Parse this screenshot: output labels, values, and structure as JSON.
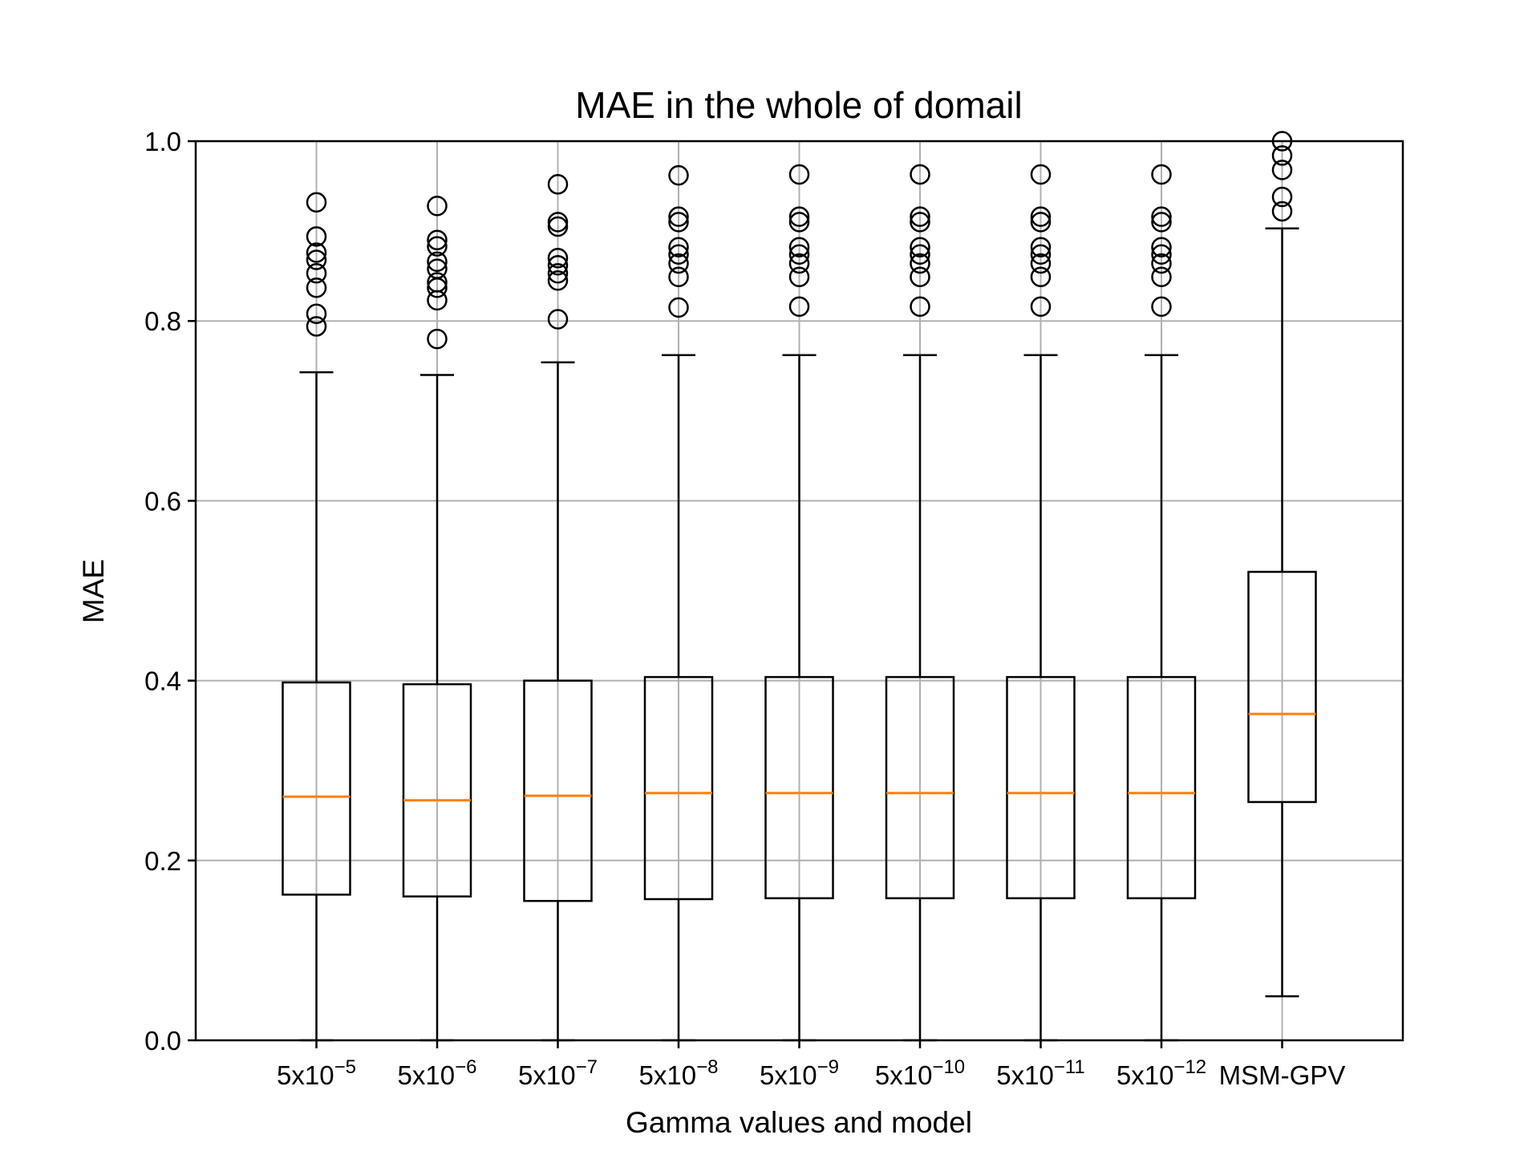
{
  "chart_data": {
    "type": "box",
    "title": "MAE in the whole of domail",
    "xlabel": "Gamma values and model",
    "ylabel": "MAE",
    "ylim": [
      0.0,
      1.0
    ],
    "yticks": [
      "0.0",
      "0.2",
      "0.4",
      "0.6",
      "0.8",
      "1.0"
    ],
    "grid": true,
    "colors": {
      "box": "#000000",
      "median": "#ff7f0e",
      "grid": "#b0b0b0"
    },
    "categories": [
      {
        "base": "5x10",
        "exp": "−5"
      },
      {
        "base": "5x10",
        "exp": "−6"
      },
      {
        "base": "5x10",
        "exp": "−7"
      },
      {
        "base": "5x10",
        "exp": "−8"
      },
      {
        "base": "5x10",
        "exp": "−9"
      },
      {
        "base": "5x10",
        "exp": "−10"
      },
      {
        "base": "5x10",
        "exp": "−11"
      },
      {
        "base": "5x10",
        "exp": "−12"
      },
      {
        "base": "MSM-GPV",
        "exp": ""
      }
    ],
    "boxes": [
      {
        "whislo": 0.0,
        "q1": 0.162,
        "med": 0.271,
        "q3": 0.398,
        "whishi": 0.743,
        "fliers": [
          0.794,
          0.808,
          0.837,
          0.853,
          0.868,
          0.876,
          0.894,
          0.932
        ]
      },
      {
        "whislo": 0.0,
        "q1": 0.16,
        "med": 0.267,
        "q3": 0.396,
        "whishi": 0.74,
        "fliers": [
          0.78,
          0.823,
          0.837,
          0.843,
          0.858,
          0.866,
          0.883,
          0.89,
          0.928
        ]
      },
      {
        "whislo": 0.0,
        "q1": 0.155,
        "med": 0.272,
        "q3": 0.4,
        "whishi": 0.754,
        "fliers": [
          0.802,
          0.845,
          0.853,
          0.862,
          0.87,
          0.905,
          0.91,
          0.952
        ]
      },
      {
        "whislo": 0.0,
        "q1": 0.157,
        "med": 0.275,
        "q3": 0.404,
        "whishi": 0.762,
        "fliers": [
          0.815,
          0.849,
          0.864,
          0.874,
          0.882,
          0.91,
          0.916,
          0.962
        ]
      },
      {
        "whislo": 0.0,
        "q1": 0.158,
        "med": 0.275,
        "q3": 0.404,
        "whishi": 0.762,
        "fliers": [
          0.816,
          0.849,
          0.864,
          0.874,
          0.882,
          0.91,
          0.916,
          0.963
        ]
      },
      {
        "whislo": 0.0,
        "q1": 0.158,
        "med": 0.275,
        "q3": 0.404,
        "whishi": 0.762,
        "fliers": [
          0.816,
          0.849,
          0.864,
          0.874,
          0.882,
          0.91,
          0.916,
          0.963
        ]
      },
      {
        "whislo": 0.0,
        "q1": 0.158,
        "med": 0.275,
        "q3": 0.404,
        "whishi": 0.762,
        "fliers": [
          0.816,
          0.849,
          0.864,
          0.874,
          0.882,
          0.91,
          0.916,
          0.963
        ]
      },
      {
        "whislo": 0.0,
        "q1": 0.158,
        "med": 0.275,
        "q3": 0.404,
        "whishi": 0.762,
        "fliers": [
          0.816,
          0.849,
          0.864,
          0.874,
          0.882,
          0.91,
          0.916,
          0.963
        ]
      },
      {
        "whislo": 0.049,
        "q1": 0.265,
        "med": 0.363,
        "q3": 0.521,
        "whishi": 0.903,
        "fliers": [
          0.922,
          0.938,
          0.968,
          0.984,
          1.0
        ]
      }
    ]
  }
}
